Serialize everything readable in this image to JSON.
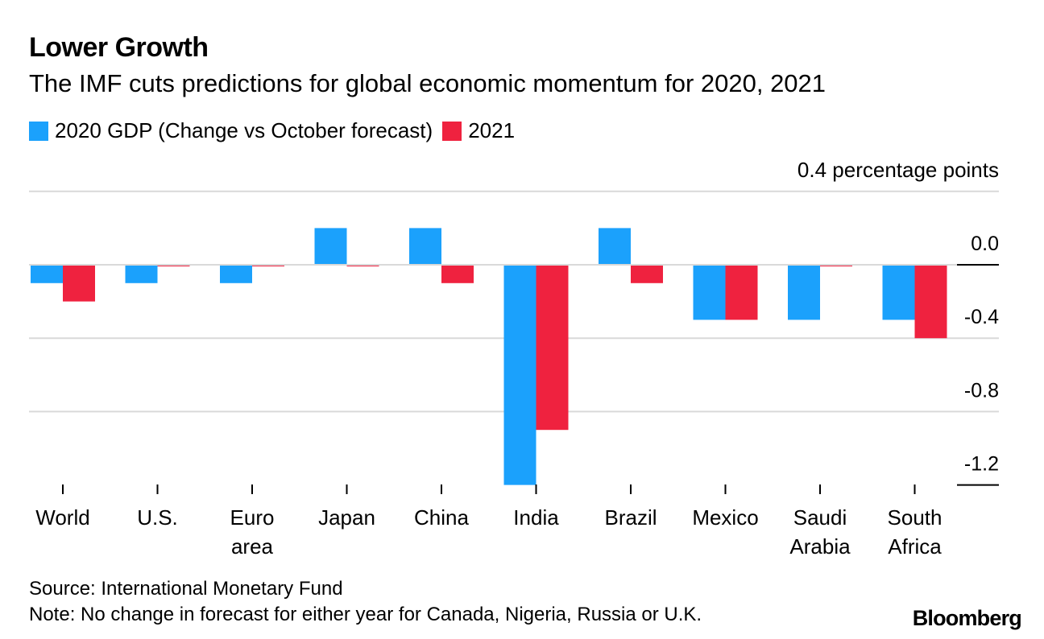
{
  "title": "Lower Growth",
  "subtitle": "The IMF cuts predictions for global economic momentum for 2020, 2021",
  "legend": [
    {
      "label": "2020 GDP (Change vs October forecast)",
      "color": "#1ba1fc"
    },
    {
      "label": "2021",
      "color": "#ef223f"
    }
  ],
  "unit_label": "0.4 percentage points",
  "source": "Source: International Monetary Fund",
  "note": "Note: No change in forecast for either year for Canada, Nigeria, Russia or U.K.",
  "brand": "Bloomberg",
  "chart_data": {
    "type": "bar",
    "title": "Lower Growth",
    "ylabel": "percentage points",
    "ylim": [
      -1.2,
      0.4
    ],
    "yticks": [
      0.0,
      -0.4,
      -0.8,
      -1.2
    ],
    "ytick_labels": [
      "0.0",
      "-0.4",
      "-0.8",
      "-1.2"
    ],
    "categories": [
      [
        "World"
      ],
      [
        "U.S."
      ],
      [
        "Euro",
        "area"
      ],
      [
        "Japan"
      ],
      [
        "China"
      ],
      [
        "India"
      ],
      [
        "Brazil"
      ],
      [
        "Mexico"
      ],
      [
        "Saudi",
        "Arabia"
      ],
      [
        "South",
        "Africa"
      ]
    ],
    "series": [
      {
        "name": "2020 GDP (Change vs October forecast)",
        "color": "#1ba1fc",
        "values": [
          -0.1,
          -0.1,
          -0.1,
          0.2,
          0.2,
          -1.2,
          0.2,
          -0.3,
          -0.3,
          -0.3
        ]
      },
      {
        "name": "2021",
        "color": "#ef223f",
        "values": [
          -0.2,
          0.0,
          0.0,
          0.0,
          -0.1,
          -0.9,
          -0.1,
          -0.3,
          0.0,
          -0.4
        ]
      }
    ]
  }
}
